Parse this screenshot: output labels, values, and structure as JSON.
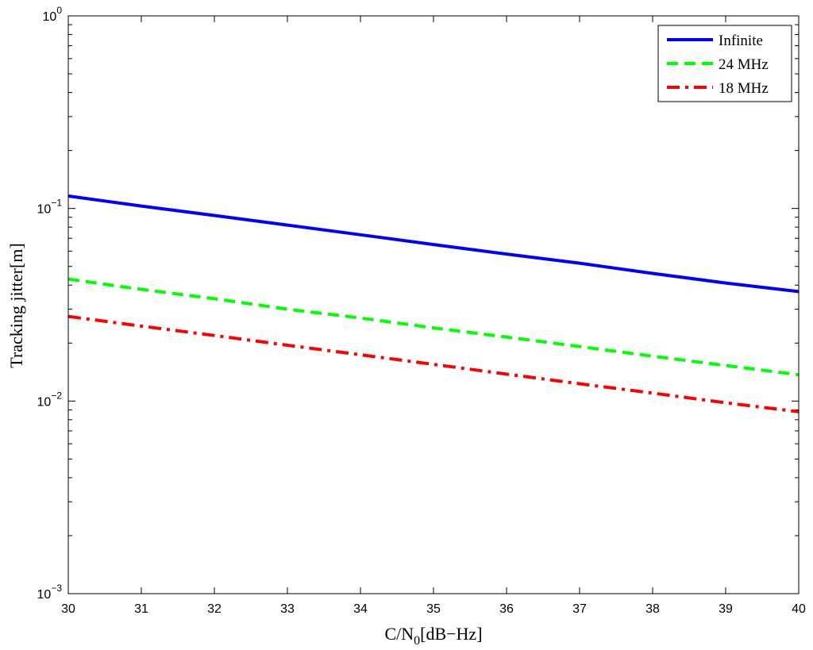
{
  "chart_data": {
    "type": "line",
    "title": "",
    "xlabel": {
      "main": "C/N",
      "sub": "0",
      "suffix": "[dB−Hz]"
    },
    "ylabel": "Tracking jitter[m]",
    "xlim": [
      30,
      40
    ],
    "ylim": [
      0.001,
      1
    ],
    "yscale": "log",
    "grid": false,
    "legend_position": "top-right",
    "x_ticks": [
      30,
      31,
      32,
      33,
      34,
      35,
      36,
      37,
      38,
      39,
      40
    ],
    "x_tick_labels": [
      "30",
      "31",
      "32",
      "33",
      "34",
      "35",
      "36",
      "37",
      "38",
      "39",
      "40"
    ],
    "y_major_ticks": [
      {
        "value": 1,
        "base": "10",
        "exp": "0"
      },
      {
        "value": 0.1,
        "base": "10",
        "exp": "−1"
      },
      {
        "value": 0.01,
        "base": "10",
        "exp": "−2"
      },
      {
        "value": 0.001,
        "base": "10",
        "exp": "−3"
      }
    ],
    "series": [
      {
        "name": "Infinite",
        "color": "#0000ff",
        "style": "solid",
        "x": [
          30,
          31,
          32,
          33,
          34,
          35,
          36,
          37,
          38,
          39,
          40
        ],
        "y": [
          0.116,
          0.103,
          0.092,
          0.082,
          0.073,
          0.065,
          0.058,
          0.052,
          0.046,
          0.041,
          0.037
        ]
      },
      {
        "name": "24 MHz",
        "color": "#00ff00",
        "style": "dashed",
        "x": [
          30,
          31,
          32,
          33,
          34,
          35,
          36,
          37,
          38,
          39,
          40
        ],
        "y": [
          0.043,
          0.038,
          0.034,
          0.03,
          0.027,
          0.024,
          0.0215,
          0.0192,
          0.0171,
          0.0153,
          0.0137
        ]
      },
      {
        "name": "18 MHz",
        "color": "#ff0000",
        "style": "dashdot",
        "x": [
          30,
          31,
          32,
          33,
          34,
          35,
          36,
          37,
          38,
          39,
          40
        ],
        "y": [
          0.0275,
          0.0245,
          0.0219,
          0.0195,
          0.0174,
          0.0155,
          0.0138,
          0.0123,
          0.011,
          0.0098,
          0.0088
        ]
      }
    ]
  }
}
